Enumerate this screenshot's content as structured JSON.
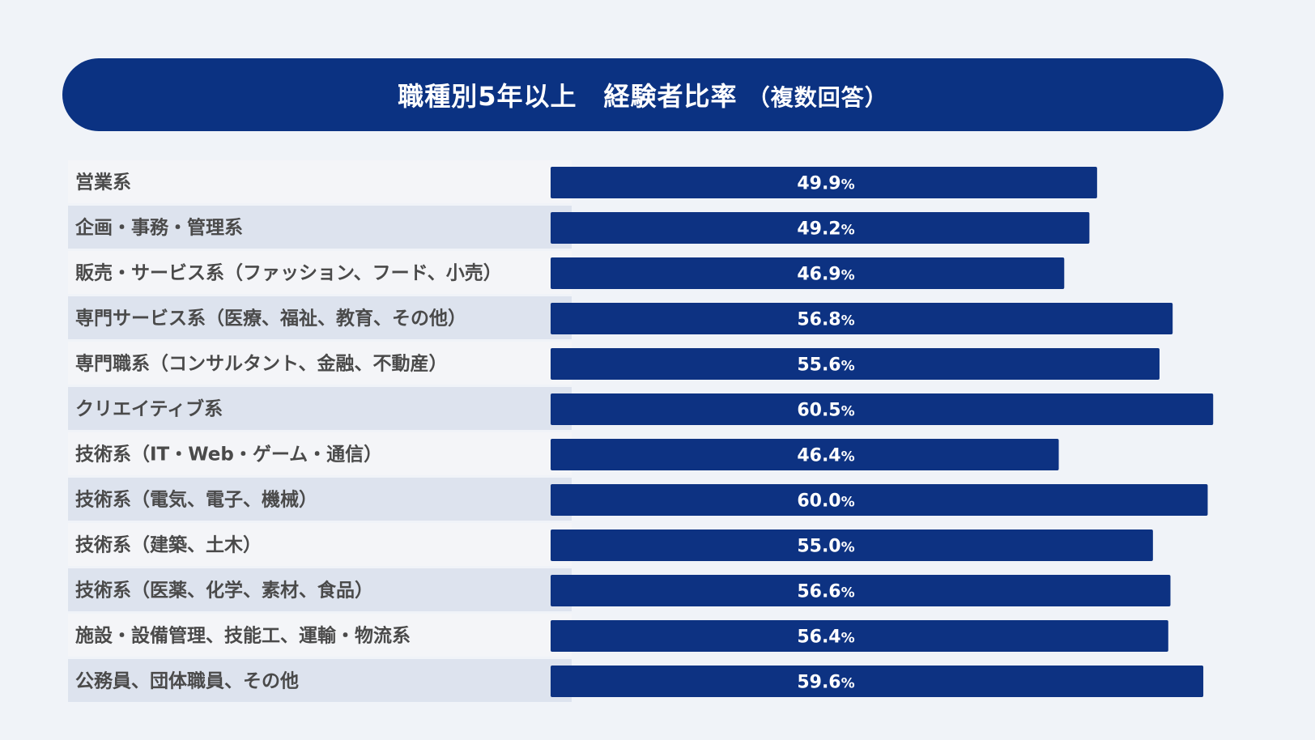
{
  "colors": {
    "background": "#f0f3f8",
    "title_background": "#0b3282",
    "bar": "#0d3282",
    "row_odd": "#f4f5f8",
    "row_even": "#dde3ee",
    "label_text": "#4a4a4a",
    "value_text": "#ffffff"
  },
  "chart_data": {
    "type": "bar",
    "orientation": "horizontal",
    "title": "職種別5年以上　経験者比率",
    "subtitle": "（複数回答）",
    "value_unit": "%",
    "xlim": [
      0,
      61
    ],
    "grid": false,
    "legend": "none",
    "categories": [
      "営業系",
      "企画・事務・管理系",
      "販売・サービス系（ファッション、フード、小売）",
      "専門サービス系（医療、福祉、教育、その他）",
      "専門職系（コンサルタント、金融、不動産）",
      "クリエイティブ系",
      "技術系（IT・Web・ゲーム・通信）",
      "技術系（電気、電子、機械）",
      "技術系（建築、土木）",
      "技術系（医薬、化学、素材、食品）",
      "施設・設備管理、技能工、運輸・物流系",
      "公務員、団体職員、その他"
    ],
    "values": [
      49.9,
      49.2,
      46.9,
      56.8,
      55.6,
      60.5,
      46.4,
      60.0,
      55.0,
      56.6,
      56.4,
      59.6
    ],
    "value_labels": [
      "49.9",
      "49.2",
      "46.9",
      "56.8",
      "55.6",
      "60.5",
      "46.4",
      "60.0",
      "55.0",
      "56.6",
      "56.4",
      "59.6"
    ]
  }
}
